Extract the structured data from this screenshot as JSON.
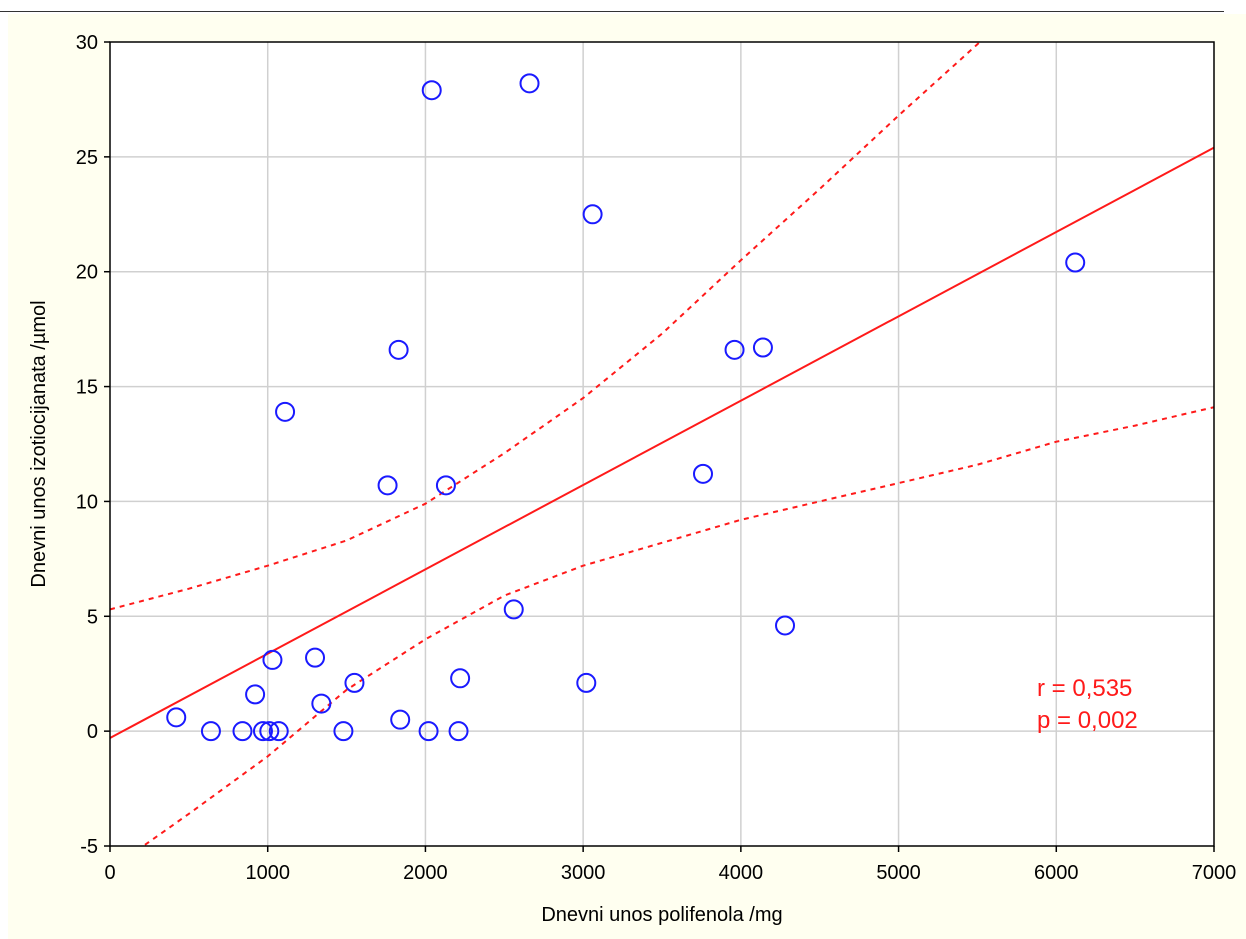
{
  "chart_data": {
    "type": "scatter",
    "title": "",
    "xlabel": "Dnevni unos polifenola /mg",
    "ylabel": "Dnevni unos izotiocijanata /µmol",
    "xlim": [
      0,
      7000
    ],
    "ylim": [
      -5,
      30
    ],
    "xticks": [
      "0",
      "1000",
      "2000",
      "3000",
      "4000",
      "5000",
      "6000",
      "7000"
    ],
    "yticks": [
      "-5",
      "0",
      "5",
      "10",
      "15",
      "20",
      "25",
      "30"
    ],
    "grid": true,
    "points": [
      {
        "x": 420,
        "y": 0.6
      },
      {
        "x": 640,
        "y": 0.0
      },
      {
        "x": 840,
        "y": 0.0
      },
      {
        "x": 920,
        "y": 1.6
      },
      {
        "x": 970,
        "y": 0.0
      },
      {
        "x": 1010,
        "y": 0.0
      },
      {
        "x": 1030,
        "y": 3.1
      },
      {
        "x": 1070,
        "y": 0.0
      },
      {
        "x": 1110,
        "y": 13.9
      },
      {
        "x": 1300,
        "y": 3.2
      },
      {
        "x": 1340,
        "y": 1.2
      },
      {
        "x": 1480,
        "y": 0.0
      },
      {
        "x": 1550,
        "y": 2.1
      },
      {
        "x": 1760,
        "y": 10.7
      },
      {
        "x": 1830,
        "y": 16.6
      },
      {
        "x": 1840,
        "y": 0.5
      },
      {
        "x": 2020,
        "y": 0.0
      },
      {
        "x": 2040,
        "y": 27.9
      },
      {
        "x": 2130,
        "y": 10.7
      },
      {
        "x": 2210,
        "y": 0.0
      },
      {
        "x": 2220,
        "y": 2.3
      },
      {
        "x": 2560,
        "y": 5.3
      },
      {
        "x": 2660,
        "y": 28.2
      },
      {
        "x": 3020,
        "y": 2.1
      },
      {
        "x": 3060,
        "y": 22.5
      },
      {
        "x": 3760,
        "y": 11.2
      },
      {
        "x": 3960,
        "y": 16.6
      },
      {
        "x": 4140,
        "y": 16.7
      },
      {
        "x": 4280,
        "y": 4.6
      },
      {
        "x": 6120,
        "y": 20.4
      }
    ],
    "regression": [
      [
        0,
        -0.3
      ],
      [
        7000,
        25.4
      ]
    ],
    "ci_upper": [
      [
        0,
        5.3
      ],
      [
        500,
        6.2
      ],
      [
        1000,
        7.2
      ],
      [
        1500,
        8.3
      ],
      [
        2000,
        9.9
      ],
      [
        2500,
        12.1
      ],
      [
        3000,
        14.5
      ],
      [
        3500,
        17.3
      ],
      [
        4000,
        20.5
      ],
      [
        4500,
        23.6
      ],
      [
        5000,
        26.8
      ],
      [
        5500,
        29.9
      ],
      [
        5700,
        31.2
      ]
    ],
    "ci_lower": [
      [
        170,
        -5.2
      ],
      [
        500,
        -3.6
      ],
      [
        1000,
        -1.1
      ],
      [
        1500,
        1.8
      ],
      [
        2000,
        4.0
      ],
      [
        2500,
        5.9
      ],
      [
        3000,
        7.2
      ],
      [
        3500,
        8.2
      ],
      [
        4000,
        9.2
      ],
      [
        4500,
        10.0
      ],
      [
        5000,
        10.8
      ],
      [
        5500,
        11.6
      ],
      [
        6000,
        12.6
      ],
      [
        6500,
        13.3
      ],
      [
        7000,
        14.1
      ]
    ],
    "annotations": [
      "r = 0,535",
      "p = 0,002"
    ],
    "colors": {
      "points": "#1a1aff",
      "fit": "#ff1a1a",
      "grid": "#d0d0d0",
      "plot_bg": "#ffffff",
      "frame_bg": "#fffff0"
    }
  }
}
